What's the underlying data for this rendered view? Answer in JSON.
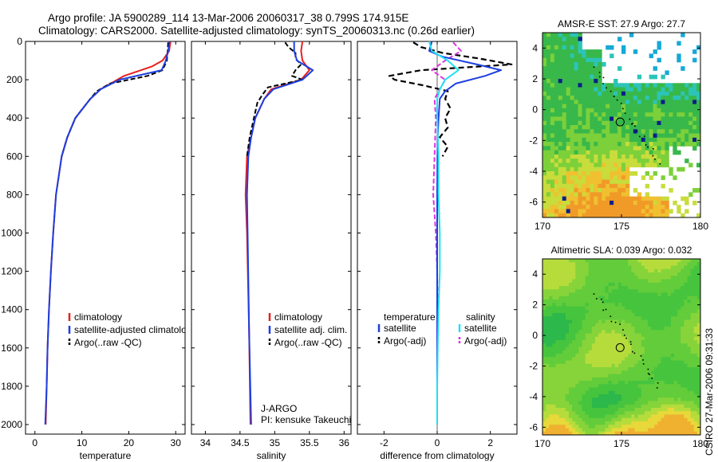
{
  "header": {
    "line1": "Argo profile: JA 5900289_114 13-Mar-2006 20060317_38 0.799S 174.915E",
    "line2": "Climatology: CARS2000. Satellite-adjusted climatology: synTS_20060313.nc (0.26d earlier)"
  },
  "side_label": "CSIRO 27-Mar-2006 09:31:33",
  "colors": {
    "climatology": "#e8211f",
    "satellite": "#1d3fe0",
    "argo": "#000000",
    "sat_cyan": "#22e0f0",
    "argo_adj": "#dd33dd"
  },
  "chart_data": [
    {
      "id": "temperature",
      "type": "line",
      "xlabel": "temperature",
      "ylabel": "",
      "xlim": [
        -2,
        32
      ],
      "ylim": [
        2050,
        0
      ],
      "xticks": [
        0,
        10,
        20,
        30
      ],
      "yticks": [
        0,
        200,
        400,
        600,
        800,
        1000,
        1200,
        1400,
        1600,
        1800,
        2000
      ],
      "legend": [
        "climatology",
        "satellite-adjusted climatology",
        "Argo(..raw -QC)"
      ],
      "series": [
        {
          "name": "climatology",
          "depth": [
            0,
            50,
            100,
            130,
            180,
            250,
            300,
            400,
            500,
            600,
            800,
            1000,
            1200,
            1400,
            1600,
            1800,
            2000
          ],
          "values": [
            28.9,
            28.6,
            27.2,
            25,
            19,
            14,
            11.8,
            8.6,
            6.9,
            5.7,
            4.5,
            3.9,
            3.4,
            3,
            2.7,
            2.5,
            2.3
          ]
        },
        {
          "name": "satellite-adjusted climatology",
          "depth": [
            0,
            50,
            100,
            150,
            200,
            250,
            300,
            400,
            500,
            600,
            800,
            1000,
            1200,
            1400,
            1600,
            1800,
            2000
          ],
          "values": [
            28.7,
            28.4,
            27.9,
            27,
            18,
            14,
            11.8,
            8.6,
            6.9,
            5.7,
            4.5,
            3.9,
            3.4,
            3,
            2.7,
            2.5,
            2.2
          ]
        },
        {
          "name": "Argo(..raw -QC)",
          "depth": [
            5,
            50,
            100,
            150,
            180,
            220,
            260,
            300,
            400,
            500,
            600
          ],
          "values": [
            28.4,
            28.3,
            28.1,
            27.2,
            24,
            16,
            13.2,
            11.8,
            8.6,
            6.9,
            5.7
          ]
        }
      ]
    },
    {
      "id": "salinity",
      "type": "line",
      "xlabel": "salinity",
      "ylabel": "",
      "xlim": [
        33.8,
        36.1
      ],
      "ylim": [
        2050,
        0
      ],
      "xticks": [
        34,
        34.5,
        35,
        35.5,
        36
      ],
      "legend": [
        "climatology",
        "satellite adj. clim.",
        "Argo(..raw -QC)"
      ],
      "annotation": [
        "J-ARGO",
        "PI: kensuke Takeuchi"
      ],
      "series": [
        {
          "name": "climatology",
          "depth": [
            0,
            50,
            100,
            150,
            200,
            250,
            300,
            400,
            500,
            600,
            800,
            1000,
            1500,
            2000
          ],
          "values": [
            35.4,
            35.38,
            35.4,
            35.5,
            35.38,
            34.95,
            34.85,
            34.72,
            34.66,
            34.6,
            34.58,
            34.6,
            34.63,
            34.65
          ]
        },
        {
          "name": "satellite adj. clim.",
          "depth": [
            0,
            50,
            100,
            150,
            200,
            250,
            300,
            400,
            500,
            600,
            800,
            1000,
            1500,
            2000
          ],
          "values": [
            35.28,
            35.28,
            35.32,
            35.55,
            35.4,
            34.98,
            34.85,
            34.72,
            34.66,
            34.62,
            34.6,
            34.61,
            34.63,
            34.66
          ]
        },
        {
          "name": "Argo(..raw -QC)",
          "depth": [
            5,
            30,
            60,
            90,
            120,
            150,
            180,
            200,
            240,
            280,
            320,
            400,
            500,
            600
          ],
          "values": [
            35.15,
            35.2,
            35.3,
            35.3,
            35.38,
            35.3,
            35.25,
            35.4,
            34.9,
            34.82,
            34.75,
            34.7,
            34.64,
            34.6
          ]
        }
      ]
    },
    {
      "id": "difference",
      "type": "line",
      "xlabel": "difference from climatology",
      "ylabel": "",
      "xlim": [
        -3,
        3
      ],
      "ylim": [
        2050,
        0
      ],
      "xticks": [
        -2,
        0,
        2
      ],
      "legend_left_title": "temperature",
      "legend_right_title": "salinity",
      "legend_left": [
        "satellite",
        "Argo(-adj)"
      ],
      "legend_right": [
        "satellite",
        "Argo(-adj)"
      ],
      "series": [
        {
          "name": "temperature satellite",
          "depth": [
            0,
            50,
            80,
            120,
            150,
            180,
            220,
            260,
            300,
            400,
            500,
            600,
            800,
            1000,
            1200,
            1400,
            1600,
            1800,
            2000
          ],
          "values": [
            -0.2,
            -0.3,
            0.2,
            1.5,
            2.4,
            1.8,
            0.7,
            0.3,
            0.1,
            0.05,
            0.02,
            0.01,
            0,
            0,
            0,
            0,
            0,
            0,
            0
          ]
        },
        {
          "name": "temperature Argo(-adj)",
          "depth": [
            5,
            30,
            60,
            90,
            120,
            150,
            180,
            200,
            230,
            260,
            300,
            350,
            400,
            450,
            500,
            550,
            600
          ],
          "values": [
            -0.9,
            -0.6,
            0.2,
            1.6,
            2.8,
            -0.6,
            -1.8,
            -1.6,
            -0.5,
            0.4,
            0.3,
            0.5,
            0.3,
            0.4,
            0.1,
            0.4,
            0.2
          ]
        },
        {
          "name": "salinity satellite",
          "depth": [
            0,
            50,
            100,
            150,
            200,
            250,
            300,
            400,
            600,
            800,
            1000,
            1200,
            1400,
            1600,
            1800,
            2000
          ],
          "values": [
            -0.3,
            -0.2,
            0.4,
            0.8,
            0.3,
            0.1,
            0,
            0,
            0.05,
            0.05,
            0.1,
            0.1,
            0.05,
            0.02,
            0,
            0
          ]
        },
        {
          "name": "salinity Argo(-adj)",
          "depth": [
            5,
            50,
            100,
            150,
            200,
            250,
            300,
            400,
            600,
            800,
            1000,
            1200,
            1400
          ],
          "values": [
            0.6,
            0.9,
            0.3,
            -0.2,
            0.3,
            0.1,
            -0.1,
            -0.05,
            -0.1,
            -0.15,
            -0.05,
            0,
            0.02
          ]
        }
      ]
    },
    {
      "id": "sst_map",
      "type": "heatmap",
      "title": "AMSR-E SST: 27.9 Argo: 27.7",
      "xlim": [
        170,
        180
      ],
      "ylim": [
        -7,
        5
      ],
      "xticks": [
        170,
        175,
        180
      ],
      "yticks": [
        4,
        2,
        0,
        -2,
        -4,
        -6
      ],
      "float_position": {
        "lon": 174.915,
        "lat": -0.799
      }
    },
    {
      "id": "sla_map",
      "type": "heatmap",
      "title": "Altimetric SLA: 0.039 Argo: 0.032",
      "xlim": [
        170,
        180
      ],
      "ylim": [
        -6.5,
        5
      ],
      "xticks": [
        170,
        175,
        180
      ],
      "yticks": [
        4,
        2,
        0,
        -2,
        -4,
        -6
      ],
      "float_position": {
        "lon": 174.915,
        "lat": -0.799
      }
    }
  ]
}
